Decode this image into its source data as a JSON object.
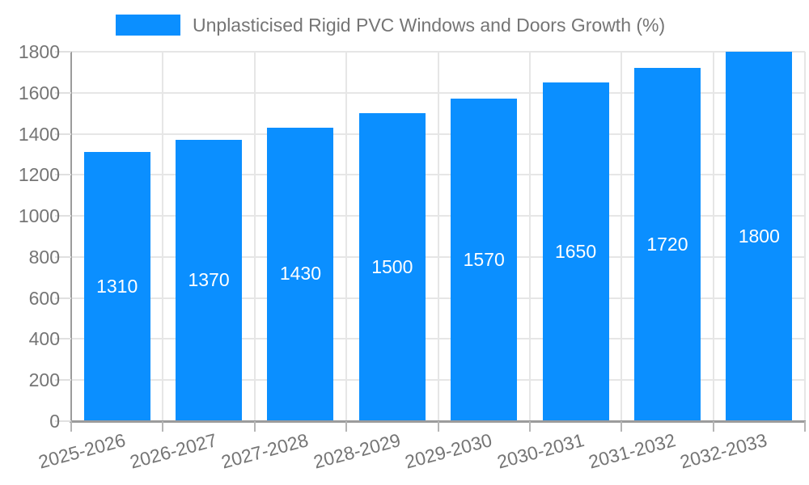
{
  "chart_data": {
    "type": "bar",
    "title": "Unplasticised Rigid PVC Windows and Doors Growth (%)",
    "legend": "Unplasticised Rigid PVC Windows and Doors Growth (%)",
    "legend_position": "top",
    "categories": [
      "2025-2026",
      "2026-2027",
      "2027-2028",
      "2028-2029",
      "2029-2030",
      "2030-2031",
      "2031-2032",
      "2032-2033"
    ],
    "values": [
      1310,
      1370,
      1430,
      1500,
      1570,
      1650,
      1720,
      1800
    ],
    "value_labels": [
      "1310",
      "1370",
      "1430",
      "1500",
      "1570",
      "1650",
      "1720",
      "1800"
    ],
    "xlabel": "",
    "ylabel": "",
    "ylim": [
      0,
      1800
    ],
    "yticks": [
      0,
      200,
      400,
      600,
      800,
      1000,
      1200,
      1400,
      1600,
      1800
    ],
    "grid": true,
    "colors": {
      "bar": "#0b8fff",
      "value_label": "#ffffff",
      "tick_text": "#757575",
      "legend_text": "#757575",
      "axis_line": "#9b9b9b",
      "gridline": "#e6e6e6"
    }
  }
}
